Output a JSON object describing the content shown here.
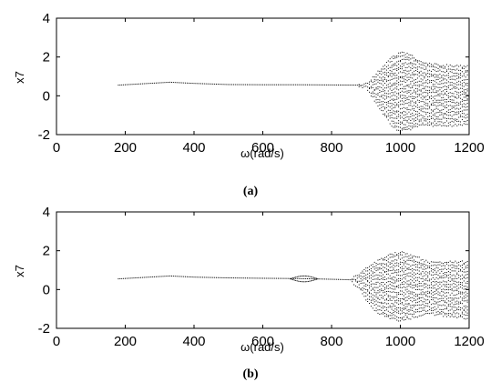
{
  "chart_data": [
    {
      "type": "scatter",
      "panel": "a",
      "caption": "(a)",
      "xlabel": "ω(rad/s)",
      "ylabel": "x7",
      "xlim": [
        0,
        1200
      ],
      "ylim": [
        -2,
        4
      ],
      "xticks": [
        "0",
        "200",
        "400",
        "600",
        "800",
        "1000",
        "1200"
      ],
      "yticks": [
        "-2",
        "0",
        "2",
        "4"
      ],
      "grid": false,
      "period1_curve": {
        "x": [
          180,
          250,
          330,
          400,
          500,
          600,
          700,
          800,
          880
        ],
        "y": [
          0.55,
          0.62,
          0.7,
          0.64,
          0.58,
          0.57,
          0.57,
          0.56,
          0.55
        ]
      },
      "band_envelope": {
        "x": [
          880,
          900,
          920,
          950,
          980,
          1000,
          1030,
          1060,
          1100,
          1150,
          1200
        ],
        "ymin": [
          0.45,
          0.35,
          -0.2,
          -1.0,
          -1.7,
          -1.9,
          -1.8,
          -1.6,
          -1.6,
          -1.6,
          -1.5
        ],
        "ymax": [
          0.6,
          0.7,
          1.0,
          1.6,
          2.1,
          2.3,
          2.2,
          1.8,
          1.7,
          1.6,
          1.6
        ]
      }
    },
    {
      "type": "scatter",
      "panel": "b",
      "caption": "(b)",
      "xlabel": "ω(rad/s)",
      "ylabel": "x7",
      "xlim": [
        0,
        1200
      ],
      "ylim": [
        -2,
        4
      ],
      "xticks": [
        "0",
        "200",
        "400",
        "600",
        "800",
        "1000",
        "1200"
      ],
      "yticks": [
        "-2",
        "0",
        "2",
        "4"
      ],
      "grid": false,
      "period1_curve": {
        "x": [
          180,
          250,
          330,
          400,
          500,
          600,
          670,
          750,
          820,
          860
        ],
        "y": [
          0.55,
          0.62,
          0.7,
          0.64,
          0.6,
          0.58,
          0.57,
          0.55,
          0.52,
          0.5
        ]
      },
      "bubble": {
        "x_start": 680,
        "x_end": 760,
        "y_center": 0.55,
        "half_height": 0.15
      },
      "band_envelope": {
        "x": [
          860,
          880,
          900,
          930,
          960,
          1000,
          1040,
          1080,
          1120,
          1160,
          1200
        ],
        "ymin": [
          0.3,
          0.0,
          -0.6,
          -1.2,
          -1.5,
          -1.7,
          -1.5,
          -1.3,
          -1.4,
          -1.5,
          -1.6
        ],
        "ymax": [
          0.7,
          0.9,
          1.2,
          1.5,
          1.8,
          2.0,
          1.8,
          1.5,
          1.5,
          1.5,
          1.5
        ]
      }
    }
  ]
}
